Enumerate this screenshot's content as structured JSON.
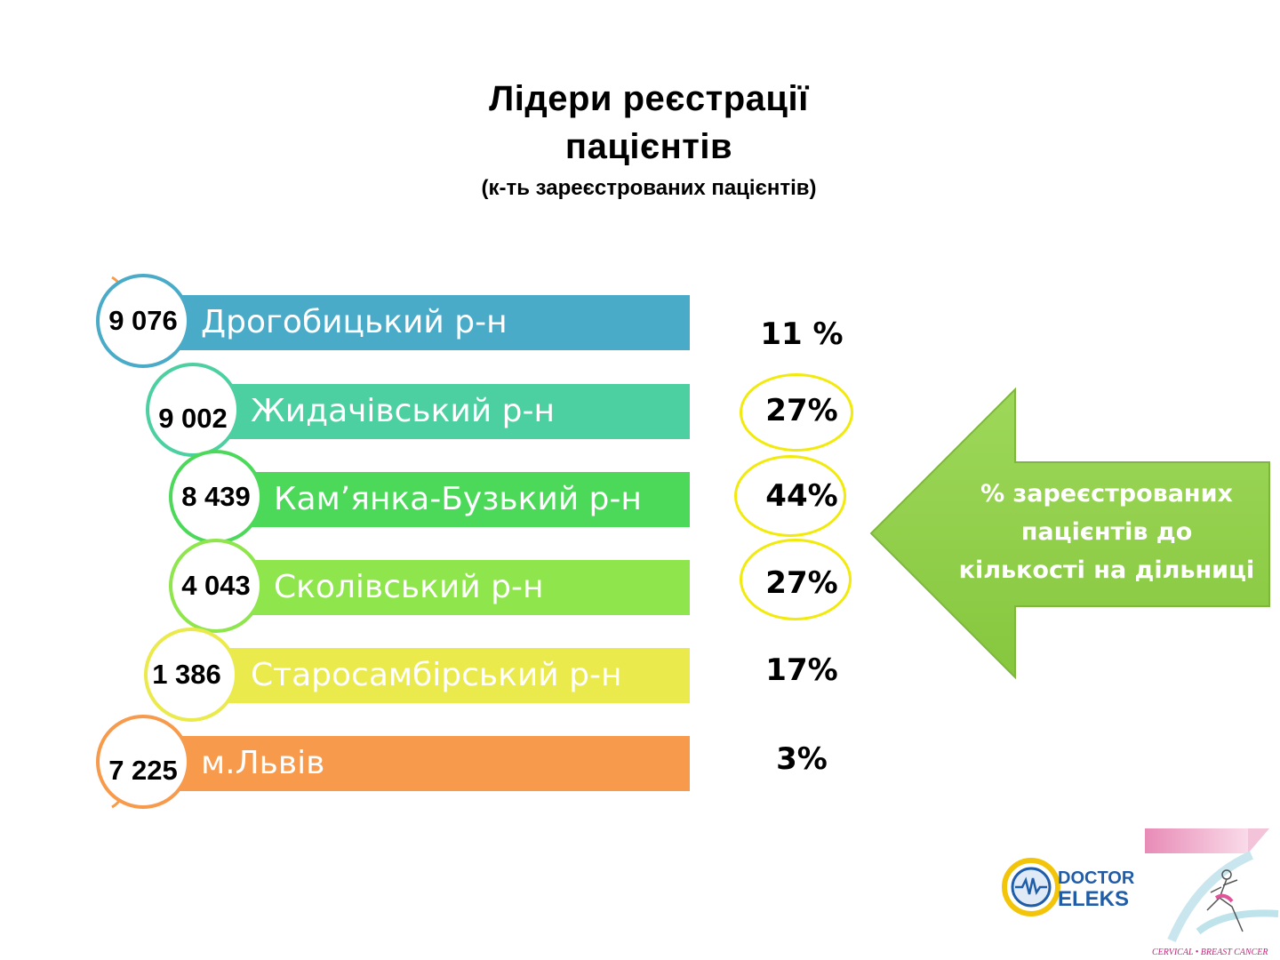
{
  "title": {
    "line1": "Лідери реєстрації",
    "line2": "пацієнтів",
    "subtitle": "(к-ть зареєстрованих пацієнтів)"
  },
  "rows": [
    {
      "value": "9 076",
      "label": "Дрогобицький р-н",
      "percent": "11 %",
      "color": "#4aabc8",
      "highlighted": false
    },
    {
      "value": "9 002",
      "label": "Жидачівський р-н",
      "percent": "27%",
      "color": "#4dd0a1",
      "highlighted": true
    },
    {
      "value": "8 439",
      "label": "Кам’янка-Бузький р-н",
      "percent": "44%",
      "color": "#4cd95a",
      "highlighted": true
    },
    {
      "value": "4 043",
      "label": "Сколівський р-н",
      "percent": "27%",
      "color": "#8fe54c",
      "highlighted": true
    },
    {
      "value": "1 386",
      "label": "Старосамбірський р-н",
      "percent": "17%",
      "color": "#eaea4c",
      "highlighted": false
    },
    {
      "value": "7 225",
      "label": "м.Львів",
      "percent": "3%",
      "color": "#f79a4c",
      "highlighted": false
    }
  ],
  "callout": {
    "line1": "%  зареєстрованих",
    "line2": "пацієнтів до",
    "line3": "кількості на дільниці",
    "color": "#92d050"
  },
  "logos": {
    "brand_line1": "DOCTOR",
    "brand_line2": "ELEKS",
    "emblem_caption": "CERVICAL • BREAST CANCER"
  },
  "highlight_color": "#f2ea0a"
}
